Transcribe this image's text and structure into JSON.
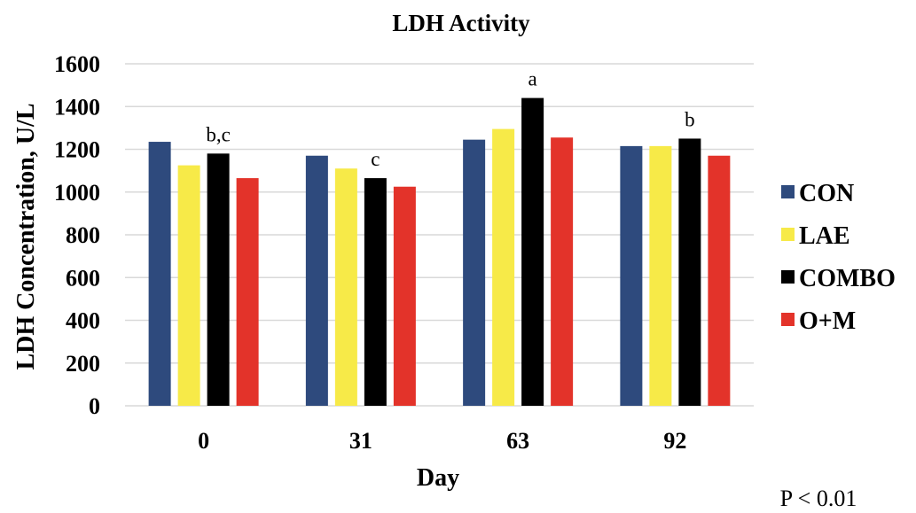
{
  "chart_data": {
    "type": "bar",
    "title": "LDH Activity",
    "xlabel": "Day",
    "ylabel": "LDH Concentration, U/L",
    "categories": [
      "0",
      "31",
      "63",
      "92"
    ],
    "ylim": [
      0,
      1600
    ],
    "yticks": [
      0,
      200,
      400,
      600,
      800,
      1000,
      1200,
      1400,
      1600
    ],
    "grid": true,
    "legend_position": "right",
    "series": [
      {
        "name": "CON",
        "color": "#2e4a7d",
        "values": [
          1235,
          1170,
          1245,
          1215
        ]
      },
      {
        "name": "LAE",
        "color": "#f7ea48",
        "values": [
          1125,
          1110,
          1295,
          1215
        ]
      },
      {
        "name": "COMBO",
        "color": "#000000",
        "values": [
          1180,
          1065,
          1440,
          1250
        ]
      },
      {
        "name": "O+M",
        "color": "#e3332a",
        "values": [
          1065,
          1025,
          1255,
          1170
        ]
      }
    ],
    "annotations": [
      {
        "category": "0",
        "series": "COMBO",
        "text": "b,c"
      },
      {
        "category": "31",
        "series": "COMBO",
        "text": "c"
      },
      {
        "category": "63",
        "series": "COMBO",
        "text": "a"
      },
      {
        "category": "92",
        "series": "COMBO",
        "text": "b"
      }
    ],
    "footnote": "P < 0.01"
  }
}
